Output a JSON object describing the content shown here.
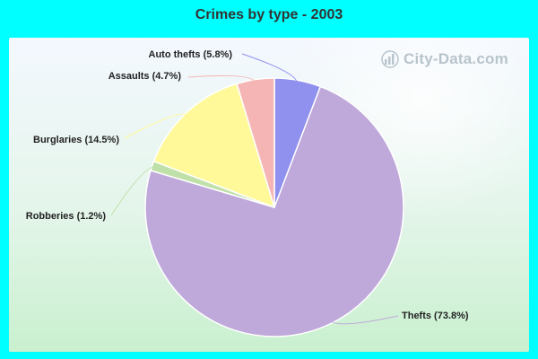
{
  "chart_data": {
    "type": "pie",
    "title": "Crimes by type - 2003",
    "watermark": "City-Data.com",
    "slices": [
      {
        "label": "Auto thefts (5.8%)",
        "name": "Auto thefts",
        "value": 5.8,
        "color": "#9090ee"
      },
      {
        "label": "Thefts (73.8%)",
        "name": "Thefts",
        "value": 73.8,
        "color": "#bfa8da"
      },
      {
        "label": "Robberies (1.2%)",
        "name": "Robberies",
        "value": 1.2,
        "color": "#bfe0a8"
      },
      {
        "label": "Burglaries (14.5%)",
        "name": "Burglaries",
        "value": 14.5,
        "color": "#fff99a"
      },
      {
        "label": "Assaults (4.7%)",
        "name": "Assaults",
        "value": 4.7,
        "color": "#f6b5b5"
      }
    ],
    "start_angle_deg": 0,
    "direction": "clockwise"
  }
}
